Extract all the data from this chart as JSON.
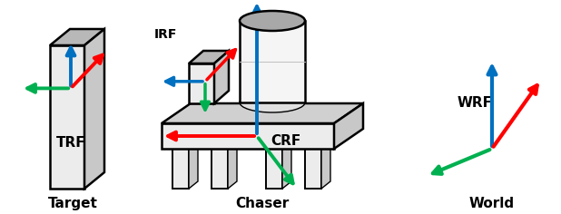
{
  "bg_color": "#ffffff",
  "arrow_colors": {
    "blue": "#0070C0",
    "red": "#FF0000",
    "green": "#00B050"
  },
  "box_face": "#ececec",
  "box_side": "#c8c8c8",
  "box_top": "#b8b8b8",
  "box_edge": "#000000",
  "labels": {
    "target_label": "Target",
    "chaser_label": "Chaser",
    "world_label": "World",
    "trf_label": "TRF",
    "crf_label": "CRF",
    "irf_label": "IRF",
    "wrf_label": "WRF"
  },
  "figsize": [
    6.18,
    2.36
  ],
  "dpi": 100,
  "xlim": [
    0,
    6.18
  ],
  "ylim": [
    0,
    2.36
  ]
}
